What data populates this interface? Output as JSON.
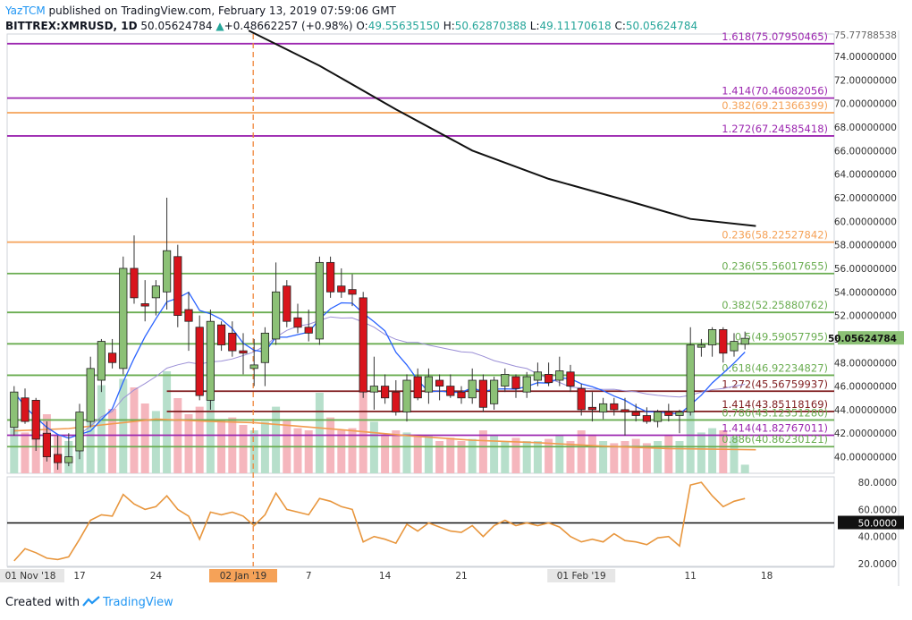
{
  "header": {
    "author": "YazTCM",
    "published": "published on TradingView.com, February 13, 2019 07:59:06 GMT",
    "symbol": "BITTREX:XMRUSD, 1D",
    "last": "50.05624784",
    "change": "+0.48662257 (+0.98%)",
    "o_label": "O:",
    "o": "49.55635150",
    "h_label": "H:",
    "h": "50.62870388",
    "l_label": "L:",
    "l": "49.11170618",
    "c_label": "C:",
    "c": "50.05624784"
  },
  "footer": {
    "created_with": "Created with",
    "brand": "TradingView"
  },
  "colors": {
    "up": "#8cc176",
    "down": "#d8141c",
    "purple": "#9c27b0",
    "orange": "#f5a258",
    "green": "#6aad51",
    "maroon": "#7f1c1e",
    "ma_black": "#111111",
    "ma_blue": "#2962ff",
    "ma_lavender": "#9b8fd6",
    "ma_orange": "#f19b4e",
    "rsi": "#e8963d",
    "vol_up": "#b7dfcb",
    "vol_down": "#f5b6bd"
  },
  "chart_data": {
    "type": "candlestick",
    "title": "BITTREX:XMRUSD, 1D",
    "ylim": [
      38.6,
      75.9
    ],
    "y_ticks": [
      "74.00000000",
      "72.00000000",
      "70.00000000",
      "68.00000000",
      "66.00000000",
      "64.00000000",
      "62.00000000",
      "60.00000000",
      "58.00000000",
      "56.00000000",
      "54.00000000",
      "52.00000000",
      "50.00000000",
      "48.00000000",
      "46.00000000",
      "44.00000000",
      "42.00000000",
      "40.00000000"
    ],
    "y_top_partial": "75.77788538",
    "last_price_label": "50.05624784",
    "x_tick_labels": [
      {
        "label": "01 Nov '18",
        "i": 0,
        "box": true
      },
      {
        "label": "17",
        "i": 6
      },
      {
        "label": "24",
        "i": 13
      },
      {
        "label": "02 Jan '19",
        "i": 21,
        "box": true,
        "highlight": true
      },
      {
        "label": "7",
        "i": 27
      },
      {
        "label": "14",
        "i": 34
      },
      {
        "label": "21",
        "i": 41
      },
      {
        "label": "01 Feb '19",
        "i": 52,
        "box": true
      },
      {
        "label": "11",
        "i": 62
      },
      {
        "label": "18",
        "i": 69
      }
    ],
    "vertical_marker_index": 22,
    "candles": [
      {
        "o": 42.5,
        "h": 46.0,
        "l": 41.8,
        "c": 45.5
      },
      {
        "o": 45.0,
        "h": 45.8,
        "l": 42.8,
        "c": 43.0
      },
      {
        "o": 44.8,
        "h": 45.0,
        "l": 40.5,
        "c": 41.5
      },
      {
        "o": 42.0,
        "h": 43.0,
        "l": 39.6,
        "c": 40.0
      },
      {
        "o": 40.2,
        "h": 41.8,
        "l": 38.9,
        "c": 39.5
      },
      {
        "o": 39.5,
        "h": 42.0,
        "l": 39.2,
        "c": 40.0
      },
      {
        "o": 40.5,
        "h": 44.5,
        "l": 39.8,
        "c": 43.8
      },
      {
        "o": 43.0,
        "h": 48.5,
        "l": 42.5,
        "c": 47.5
      },
      {
        "o": 46.5,
        "h": 50.0,
        "l": 45.5,
        "c": 49.8
      },
      {
        "o": 48.8,
        "h": 50.0,
        "l": 47.5,
        "c": 48.0
      },
      {
        "o": 47.5,
        "h": 57.0,
        "l": 47.0,
        "c": 56.0
      },
      {
        "o": 56.0,
        "h": 58.8,
        "l": 53.0,
        "c": 53.5
      },
      {
        "o": 53.0,
        "h": 55.0,
        "l": 51.5,
        "c": 52.8
      },
      {
        "o": 53.5,
        "h": 55.0,
        "l": 52.0,
        "c": 54.5
      },
      {
        "o": 54.0,
        "h": 62.0,
        "l": 52.5,
        "c": 57.5
      },
      {
        "o": 57.0,
        "h": 58.0,
        "l": 51.0,
        "c": 52.0
      },
      {
        "o": 52.5,
        "h": 54.0,
        "l": 49.0,
        "c": 51.5
      },
      {
        "o": 51.0,
        "h": 52.0,
        "l": 44.8,
        "c": 45.2
      },
      {
        "o": 44.8,
        "h": 52.5,
        "l": 44.0,
        "c": 51.5
      },
      {
        "o": 51.2,
        "h": 51.5,
        "l": 49.0,
        "c": 49.5
      },
      {
        "o": 50.5,
        "h": 51.5,
        "l": 48.5,
        "c": 49.0
      },
      {
        "o": 49.0,
        "h": 50.5,
        "l": 47.0,
        "c": 48.8
      },
      {
        "o": 47.5,
        "h": 50.0,
        "l": 46.0,
        "c": 47.8
      },
      {
        "o": 48.0,
        "h": 51.0,
        "l": 46.0,
        "c": 50.5
      },
      {
        "o": 50.0,
        "h": 56.5,
        "l": 49.5,
        "c": 54.0
      },
      {
        "o": 54.5,
        "h": 55.0,
        "l": 51.0,
        "c": 51.5
      },
      {
        "o": 51.8,
        "h": 53.0,
        "l": 50.5,
        "c": 51.0
      },
      {
        "o": 51.0,
        "h": 52.5,
        "l": 49.8,
        "c": 50.5
      },
      {
        "o": 50.0,
        "h": 57.0,
        "l": 49.5,
        "c": 56.5
      },
      {
        "o": 56.5,
        "h": 57.0,
        "l": 53.5,
        "c": 54.0
      },
      {
        "o": 54.5,
        "h": 56.0,
        "l": 53.5,
        "c": 54.0
      },
      {
        "o": 54.2,
        "h": 55.5,
        "l": 52.8,
        "c": 53.8
      },
      {
        "o": 53.5,
        "h": 54.0,
        "l": 45.0,
        "c": 45.5
      },
      {
        "o": 45.5,
        "h": 48.5,
        "l": 44.0,
        "c": 46.0
      },
      {
        "o": 46.0,
        "h": 47.0,
        "l": 44.5,
        "c": 45.0
      },
      {
        "o": 45.5,
        "h": 46.5,
        "l": 43.5,
        "c": 43.8
      },
      {
        "o": 43.8,
        "h": 47.0,
        "l": 43.0,
        "c": 46.5
      },
      {
        "o": 46.8,
        "h": 47.5,
        "l": 44.8,
        "c": 45.0
      },
      {
        "o": 45.5,
        "h": 47.5,
        "l": 44.5,
        "c": 46.8
      },
      {
        "o": 46.5,
        "h": 47.0,
        "l": 44.8,
        "c": 46.0
      },
      {
        "o": 46.0,
        "h": 47.0,
        "l": 45.0,
        "c": 45.2
      },
      {
        "o": 45.5,
        "h": 46.0,
        "l": 44.5,
        "c": 45.0
      },
      {
        "o": 45.0,
        "h": 47.5,
        "l": 44.5,
        "c": 46.5
      },
      {
        "o": 46.5,
        "h": 47.0,
        "l": 43.8,
        "c": 44.2
      },
      {
        "o": 44.5,
        "h": 46.8,
        "l": 44.0,
        "c": 46.5
      },
      {
        "o": 46.0,
        "h": 47.5,
        "l": 45.5,
        "c": 47.0
      },
      {
        "o": 46.8,
        "h": 47.0,
        "l": 45.0,
        "c": 45.8
      },
      {
        "o": 45.5,
        "h": 47.2,
        "l": 45.0,
        "c": 46.8
      },
      {
        "o": 46.5,
        "h": 48.0,
        "l": 46.0,
        "c": 47.2
      },
      {
        "o": 47.0,
        "h": 48.0,
        "l": 46.0,
        "c": 46.3
      },
      {
        "o": 46.5,
        "h": 48.5,
        "l": 46.0,
        "c": 47.3
      },
      {
        "o": 47.2,
        "h": 47.8,
        "l": 45.5,
        "c": 46.0
      },
      {
        "o": 45.8,
        "h": 46.2,
        "l": 43.5,
        "c": 44.0
      },
      {
        "o": 44.2,
        "h": 45.5,
        "l": 43.0,
        "c": 44.0
      },
      {
        "o": 43.8,
        "h": 45.0,
        "l": 43.2,
        "c": 44.5
      },
      {
        "o": 44.5,
        "h": 45.0,
        "l": 43.5,
        "c": 44.0
      },
      {
        "o": 44.0,
        "h": 45.0,
        "l": 41.8,
        "c": 43.8
      },
      {
        "o": 43.8,
        "h": 44.5,
        "l": 43.0,
        "c": 43.5
      },
      {
        "o": 43.5,
        "h": 44.2,
        "l": 42.8,
        "c": 43.0
      },
      {
        "o": 43.0,
        "h": 44.0,
        "l": 42.5,
        "c": 43.8
      },
      {
        "o": 43.8,
        "h": 44.5,
        "l": 43.0,
        "c": 43.5
      },
      {
        "o": 43.5,
        "h": 44.0,
        "l": 42.0,
        "c": 43.8
      },
      {
        "o": 43.8,
        "h": 51.0,
        "l": 43.5,
        "c": 49.5
      },
      {
        "o": 49.3,
        "h": 50.0,
        "l": 48.5,
        "c": 49.5
      },
      {
        "o": 49.5,
        "h": 51.0,
        "l": 48.5,
        "c": 50.8
      },
      {
        "o": 50.8,
        "h": 51.0,
        "l": 48.0,
        "c": 48.8
      },
      {
        "o": 49.0,
        "h": 50.5,
        "l": 48.5,
        "c": 49.8
      },
      {
        "o": 49.56,
        "h": 50.63,
        "l": 49.11,
        "c": 50.06
      }
    ],
    "volume": [
      0.42,
      0.38,
      0.46,
      0.55,
      0.35,
      0.3,
      0.55,
      0.72,
      0.82,
      0.6,
      0.88,
      0.8,
      0.65,
      0.58,
      0.95,
      0.7,
      0.55,
      0.62,
      0.92,
      0.5,
      0.52,
      0.45,
      0.4,
      0.48,
      0.62,
      0.5,
      0.42,
      0.4,
      0.75,
      0.52,
      0.4,
      0.42,
      0.9,
      0.48,
      0.35,
      0.4,
      0.38,
      0.36,
      0.35,
      0.3,
      0.33,
      0.3,
      0.32,
      0.4,
      0.35,
      0.3,
      0.33,
      0.3,
      0.3,
      0.32,
      0.35,
      0.3,
      0.4,
      0.36,
      0.3,
      0.28,
      0.3,
      0.32,
      0.28,
      0.3,
      0.35,
      0.3,
      0.8,
      0.38,
      0.42,
      0.4,
      0.34,
      0.08
    ],
    "levels": [
      {
        "value": 75.07950465,
        "label": "1.618(75.07950465)",
        "color": "purple"
      },
      {
        "value": 70.46082056,
        "label": "1.414(70.46082056)",
        "color": "purple"
      },
      {
        "value": 69.21366399,
        "label": "0.382(69.21366399)",
        "color": "orange"
      },
      {
        "value": 67.24585418,
        "label": "1.272(67.24585418)",
        "color": "purple"
      },
      {
        "value": 58.22527842,
        "label": "0.236(58.22527842)",
        "color": "orange"
      },
      {
        "value": 55.56017655,
        "label": "0.236(55.56017655)",
        "color": "green"
      },
      {
        "value": 52.25880762,
        "label": "0.382(52.25880762)",
        "color": "green"
      },
      {
        "value": 49.59057795,
        "label": "0.5(49.59057795)",
        "color": "green"
      },
      {
        "value": 46.92234827,
        "label": "0.618(46.92234827)",
        "color": "green"
      },
      {
        "value": 45.56759937,
        "label": "1.272(45.56759937)",
        "color": "maroon",
        "start_i": 14
      },
      {
        "value": 43.85118169,
        "label": "1.414(43.85118169)",
        "color": "maroon",
        "start_i": 14
      },
      {
        "value": 43.1235128,
        "label": "0.786(43.12351280)",
        "color": "green"
      },
      {
        "value": 41.82767011,
        "label": "1.414(41.82767011)",
        "color": "purple"
      },
      {
        "value": 40.86230121,
        "label": "0.886(40.86230121)",
        "color": "green"
      }
    ],
    "ma_black": [
      [
        21.5,
        76.2
      ],
      [
        28,
        73.2
      ],
      [
        35,
        69.5
      ],
      [
        42,
        66.0
      ],
      [
        49,
        63.6
      ],
      [
        56,
        61.8
      ],
      [
        62,
        60.2
      ],
      [
        68,
        59.6
      ]
    ],
    "ma_blue_period": 7,
    "ma_lavender_period": 20,
    "ma_orange": [
      [
        0,
        42.2
      ],
      [
        5,
        42.4
      ],
      [
        10,
        42.9
      ],
      [
        13,
        43.2
      ],
      [
        18,
        43.0
      ],
      [
        22,
        42.9
      ],
      [
        26,
        42.6
      ],
      [
        30,
        42.3
      ],
      [
        36,
        41.8
      ],
      [
        42,
        41.4
      ],
      [
        48,
        41.2
      ],
      [
        54,
        40.9
      ],
      [
        60,
        40.7
      ],
      [
        68,
        40.6
      ]
    ],
    "rsi": {
      "ylim": [
        18,
        84
      ],
      "y_ticks": [
        "80.0000",
        "60.0000",
        "40.0000",
        "20.0000"
      ],
      "line_level": 50,
      "line_label": "50.0000",
      "values": [
        22,
        31,
        28,
        24,
        23,
        25,
        38,
        52,
        56,
        55,
        71,
        64,
        60,
        62,
        70,
        60,
        55,
        38,
        58,
        56,
        58,
        55,
        48,
        56,
        72,
        60,
        58,
        56,
        68,
        66,
        62,
        60,
        36,
        40,
        38,
        35,
        49,
        44,
        50,
        47,
        44,
        43,
        48,
        40,
        48,
        52,
        48,
        50,
        48,
        50,
        47,
        40,
        36,
        38,
        36,
        42,
        37,
        36,
        34,
        39,
        40,
        33,
        78,
        80,
        70,
        62,
        66,
        68
      ]
    }
  }
}
